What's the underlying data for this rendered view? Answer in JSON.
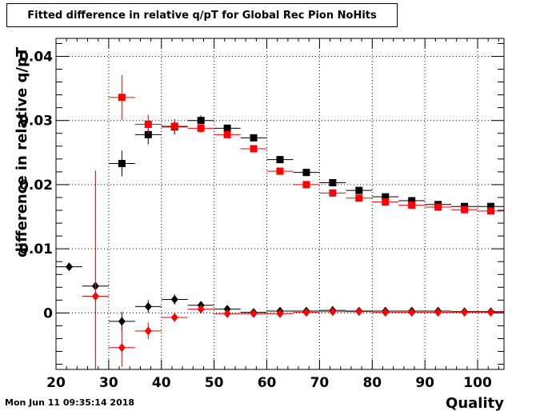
{
  "chart_data": {
    "type": "scatter",
    "title": "Fitted difference in relative q/pT for Global Rec Pion NoHits",
    "xlabel": "Quality",
    "ylabel": "difference in relative q/pT",
    "xlim": [
      20,
      105
    ],
    "ylim": [
      -0.0088,
      0.0428
    ],
    "x_ticks": [
      20,
      30,
      40,
      50,
      60,
      70,
      80,
      90,
      100
    ],
    "y_ticks": [
      0,
      0.01,
      0.02,
      0.03,
      0.04
    ],
    "x_tick_labels": [
      "20",
      "30",
      "40",
      "50",
      "60",
      "70",
      "80",
      "90",
      "100"
    ],
    "y_tick_labels": [
      "0",
      "0.01",
      "0.02",
      "0.03",
      "0.04"
    ],
    "grid": true,
    "x_bin_halfwidth": 2.5,
    "series": [
      {
        "marker": "square",
        "color": "#000000",
        "x": [
          32.5,
          37.5,
          42.5,
          47.5,
          52.5,
          57.5,
          62.5,
          67.5,
          72.5,
          77.5,
          82.5,
          87.5,
          92.5,
          97.5,
          102.5
        ],
        "y": [
          0.0233,
          0.0278,
          0.029,
          0.03,
          0.0288,
          0.0273,
          0.0239,
          0.0219,
          0.0203,
          0.0191,
          0.0181,
          0.0175,
          0.0169,
          0.0166,
          0.0166
        ],
        "yerr": [
          0.002,
          0.0015,
          0.0012,
          0.0008,
          0.0006,
          0.0005,
          0.0004,
          0.0004,
          0.0003,
          0.0003,
          0.0003,
          0.0003,
          0.0003,
          0.0003,
          0.0003
        ]
      },
      {
        "marker": "square",
        "color": "#ff0000",
        "x": [
          32.5,
          37.5,
          42.5,
          47.5,
          52.5,
          57.5,
          62.5,
          67.5,
          72.5,
          77.5,
          82.5,
          87.5,
          92.5,
          97.5,
          102.5
        ],
        "y": [
          0.0336,
          0.0294,
          0.0291,
          0.0288,
          0.0278,
          0.0256,
          0.0221,
          0.02,
          0.0187,
          0.0179,
          0.0173,
          0.0168,
          0.0165,
          0.0161,
          0.0159
        ],
        "yerr": [
          0.0035,
          0.0015,
          0.001,
          0.0007,
          0.0005,
          0.0004,
          0.0004,
          0.0003,
          0.0003,
          0.0003,
          0.0003,
          0.0003,
          0.0003,
          0.0003,
          0.0003
        ]
      },
      {
        "marker": "diamond",
        "color": "#000000",
        "x": [
          22.5,
          27.5,
          32.5,
          37.5,
          42.5,
          47.5,
          52.5,
          57.5,
          62.5,
          67.5,
          72.5,
          77.5,
          82.5,
          87.5,
          92.5,
          97.5,
          102.5
        ],
        "y": [
          0.0072,
          0.0042,
          -0.0013,
          0.001,
          0.0021,
          0.0012,
          0.0006,
          0.0001,
          0.0003,
          0.0003,
          0.0004,
          0.0003,
          0.0003,
          0.0003,
          0.0003,
          0.0002,
          0.0002
        ],
        "yerr": [
          0.0,
          0.0,
          0.0015,
          0.001,
          0.0008,
          0.0005,
          0.0003,
          0.0002,
          0.0002,
          0.0002,
          0.0002,
          0.0002,
          0.0002,
          0.0002,
          0.0002,
          0.0002,
          0.0002
        ]
      },
      {
        "marker": "diamond",
        "color": "#ff0000",
        "x": [
          27.5,
          32.5,
          37.5,
          42.5,
          47.5,
          52.5,
          57.5,
          62.5,
          67.5,
          72.5,
          77.5,
          82.5,
          87.5,
          92.5,
          97.5,
          102.5
        ],
        "y": [
          0.0026,
          -0.0054,
          -0.0028,
          -0.0007,
          0.0006,
          -0.0001,
          -0.0001,
          -0.0001,
          0.0001,
          0.0002,
          0.0002,
          0.0001,
          0.0001,
          0.0001,
          0.0001,
          0.0001
        ],
        "yerr": [
          0.0196,
          0.003,
          0.0013,
          0.0007,
          0.0004,
          0.0002,
          0.0002,
          0.0002,
          0.0002,
          0.0002,
          0.0002,
          0.0002,
          0.0002,
          0.0002,
          0.0002,
          0.0002
        ]
      }
    ]
  },
  "timestamp": "Mon Jun 11 09:35:14 2018"
}
